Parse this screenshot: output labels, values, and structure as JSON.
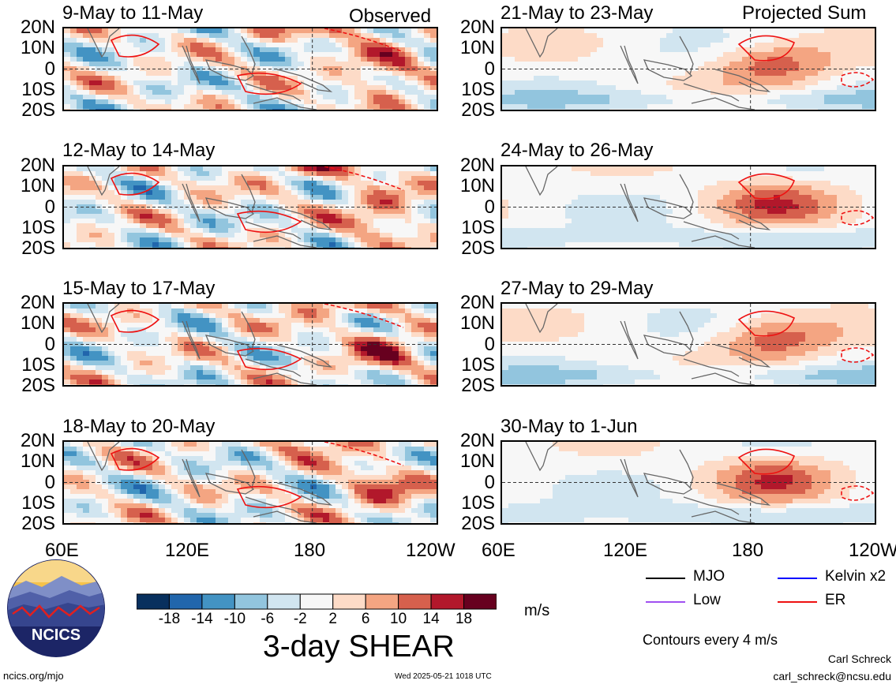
{
  "panels_left": [
    {
      "title": "9-May to 11-May",
      "tag": "Observed"
    },
    {
      "title": "12-May to 14-May",
      "tag": ""
    },
    {
      "title": "15-May to 17-May",
      "tag": ""
    },
    {
      "title": "18-May to 20-May",
      "tag": ""
    }
  ],
  "panels_right": [
    {
      "title": "21-May to 23-May",
      "tag": "Projected Sum"
    },
    {
      "title": "24-May to 26-May",
      "tag": ""
    },
    {
      "title": "27-May to 29-May",
      "tag": ""
    },
    {
      "title": "30-May to 1-Jun",
      "tag": ""
    }
  ],
  "lat_labels": [
    "20N",
    "10N",
    "0",
    "10S",
    "20S"
  ],
  "lon_labels": [
    "60E",
    "120E",
    "180",
    "120W"
  ],
  "legend": {
    "mjo": "MJO",
    "kelvin": "Kelvin x2",
    "low": "Low",
    "er": "ER",
    "colors": {
      "mjo": "#000000",
      "kelvin": "#0000ff",
      "low": "#a050f0",
      "er": "#ee1111"
    }
  },
  "colorbar": {
    "ticks": [
      "-18",
      "-14",
      "-10",
      "-6",
      "-2",
      "2",
      "6",
      "10",
      "14",
      "18"
    ],
    "colors": [
      "#08305e",
      "#2166ac",
      "#4393c3",
      "#92c5de",
      "#d1e5f0",
      "#f7f7f7",
      "#fddbc7",
      "#f4a582",
      "#d6604d",
      "#b2182b",
      "#67001f"
    ],
    "units": "m/s"
  },
  "main_title": "3-day SHEAR",
  "contour_note": "Contours every 4 m/s",
  "author": "Carl Schreck",
  "email": "carl_schreck@ncsu.edu",
  "site": "ncics.org/mjo",
  "timestamp": "Wed 2025-05-21 1018 UTC",
  "logo_text": "NCICS",
  "chart_data": {
    "type": "heatmap",
    "variable": "3-day SHEAR",
    "units": "m/s",
    "x_range": [
      "60E",
      "120W"
    ],
    "y_range": [
      "20S",
      "20N"
    ],
    "contour_interval": "4 m/s",
    "panels": [
      "9-May to 11-May",
      "12-May to 14-May",
      "15-May to 17-May",
      "18-May to 20-May",
      "21-May to 23-May",
      "24-May to 26-May",
      "27-May to 29-May",
      "30-May to 1-Jun"
    ]
  }
}
